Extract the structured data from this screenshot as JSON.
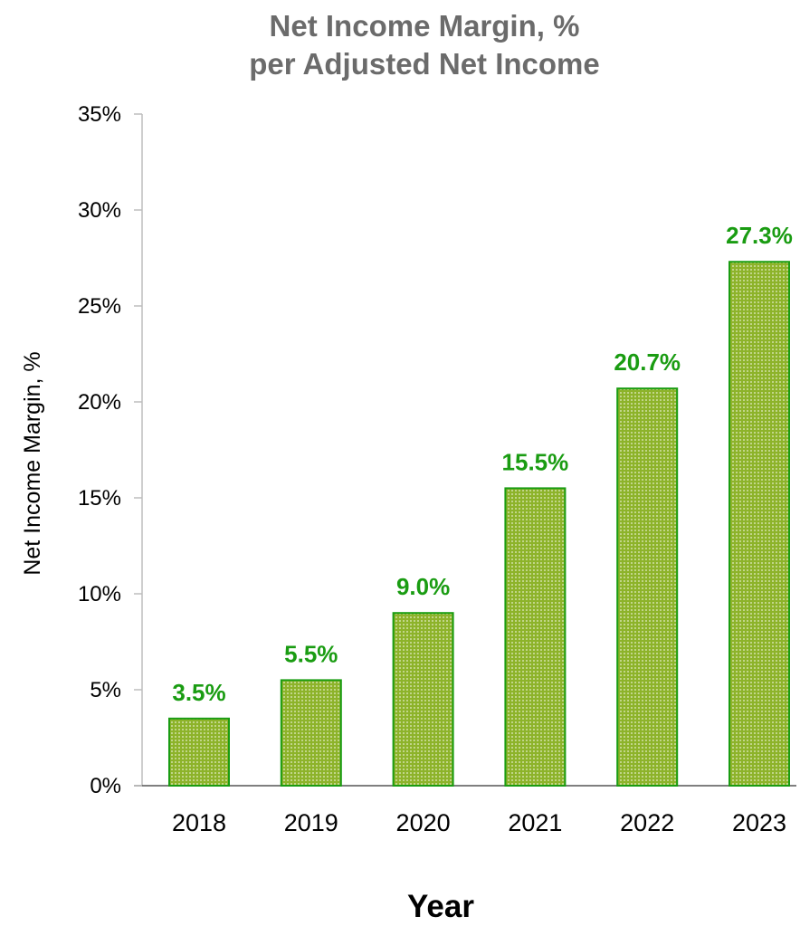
{
  "chart_data": {
    "type": "bar",
    "title_lines": [
      "Net Income Margin, %",
      "per Adjusted Net Income"
    ],
    "xlabel": "Year",
    "ylabel": "Net Income Margin, %",
    "categories": [
      "2018",
      "2019",
      "2020",
      "2021",
      "2022",
      "2023"
    ],
    "values": [
      3.5,
      5.5,
      9.0,
      15.5,
      20.7,
      27.3
    ],
    "data_labels": [
      "3.5%",
      "5.5%",
      "9.0%",
      "15.5%",
      "20.7%",
      "27.3%"
    ],
    "ylim": [
      0,
      35
    ],
    "yticks": [
      0,
      5,
      10,
      15,
      20,
      25,
      30,
      35
    ],
    "ytick_labels": [
      "0%",
      "5%",
      "10%",
      "15%",
      "20%",
      "25%",
      "30%",
      "35%"
    ],
    "grid": false,
    "legend": "none",
    "colors": {
      "bar_fill": "#8db32a",
      "bar_pattern": "#e6eecb",
      "bar_stroke": "#1a9c12",
      "data_label": "#1a9c12",
      "title": "#6b6b6b",
      "axis": "#bdbdbd"
    }
  }
}
